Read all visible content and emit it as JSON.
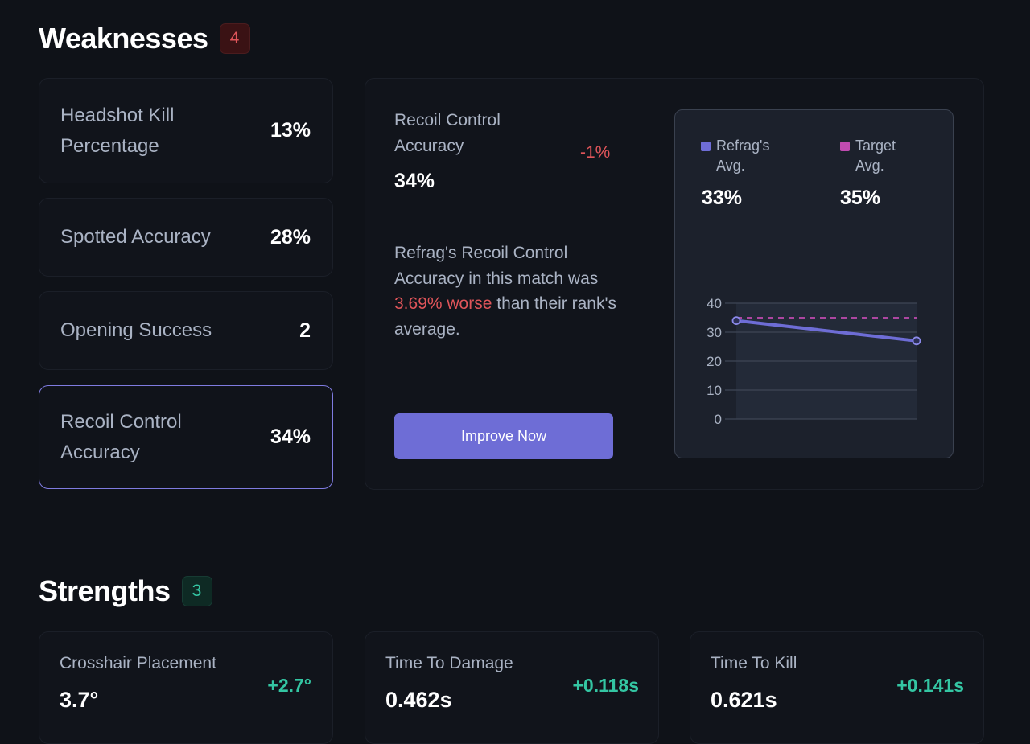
{
  "weaknesses": {
    "title": "Weaknesses",
    "count": "4",
    "metrics": [
      {
        "label": "Headshot Kill Percentage",
        "value": "13%"
      },
      {
        "label": "Spotted Accuracy",
        "value": "28%"
      },
      {
        "label": "Opening Success",
        "value": "2"
      },
      {
        "label": "Recoil Control Accuracy",
        "value": "34%"
      }
    ]
  },
  "detail": {
    "title": "Recoil Control Accuracy",
    "value": "34%",
    "delta": "-1%",
    "desc_before": "Refrag's Recoil Control Accuracy in this match was ",
    "desc_highlight": "3.69% worse",
    "desc_after": " than their rank's average.",
    "button_label": "Improve Now"
  },
  "legend": {
    "player_label": "Refrag's Avg.",
    "player_value": "33%",
    "target_label": "Target Avg.",
    "target_value": "35%"
  },
  "colors": {
    "player": "#6e6dd6",
    "target": "#c04bb0",
    "negative": "#e0555a",
    "positive": "#34c6a3"
  },
  "chart_data": {
    "type": "line",
    "y_ticks": [
      "40",
      "30",
      "20",
      "10",
      "0"
    ],
    "ylim": [
      0,
      40
    ],
    "series": [
      {
        "name": "Refrag's Avg.",
        "values": [
          34,
          27
        ]
      }
    ],
    "target_line": 35
  },
  "strengths": {
    "title": "Strengths",
    "count": "3",
    "items": [
      {
        "label": "Crosshair Placement",
        "value": "3.7°",
        "delta": "+2.7°"
      },
      {
        "label": "Time To Damage",
        "value": "0.462s",
        "delta": "+0.118s"
      },
      {
        "label": "Time To Kill",
        "value": "0.621s",
        "delta": "+0.141s"
      }
    ]
  }
}
